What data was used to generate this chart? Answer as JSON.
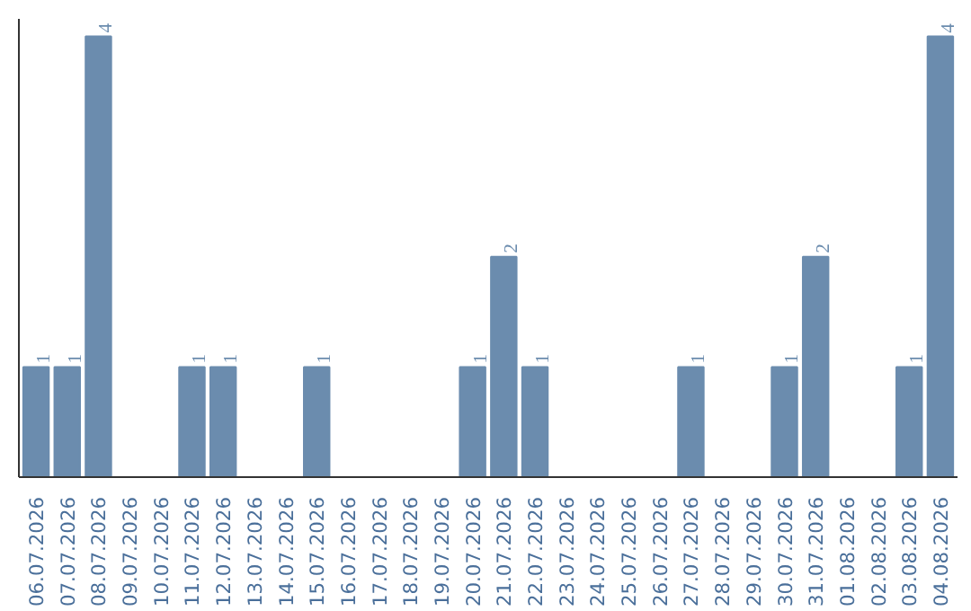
{
  "chart_data": {
    "type": "bar",
    "categories": [
      "06.07.2026",
      "07.07.2026",
      "08.07.2026",
      "09.07.2026",
      "10.07.2026",
      "11.07.2026",
      "12.07.2026",
      "13.07.2026",
      "14.07.2026",
      "15.07.2026",
      "16.07.2026",
      "17.07.2026",
      "18.07.2026",
      "19.07.2026",
      "20.07.2026",
      "21.07.2026",
      "22.07.2026",
      "23.07.2026",
      "24.07.2026",
      "25.07.2026",
      "26.07.2026",
      "27.07.2026",
      "28.07.2026",
      "29.07.2026",
      "30.07.2026",
      "31.07.2026",
      "01.08.2026",
      "02.08.2026",
      "03.08.2026",
      "04.08.2026"
    ],
    "values": [
      1,
      1,
      4,
      0,
      0,
      1,
      1,
      0,
      0,
      1,
      0,
      0,
      0,
      0,
      1,
      2,
      1,
      0,
      0,
      0,
      0,
      1,
      0,
      0,
      1,
      2,
      0,
      0,
      1,
      4
    ],
    "value_labels": [
      "1",
      "1",
      "4",
      null,
      null,
      "1",
      "1",
      null,
      null,
      "1",
      null,
      null,
      null,
      null,
      "1",
      "2",
      "1",
      null,
      null,
      null,
      null,
      "1",
      null,
      null,
      "1",
      "2",
      null,
      null,
      "1",
      "4"
    ],
    "color": "#6b8cae",
    "grid": false,
    "tick_labels": "x"
  }
}
